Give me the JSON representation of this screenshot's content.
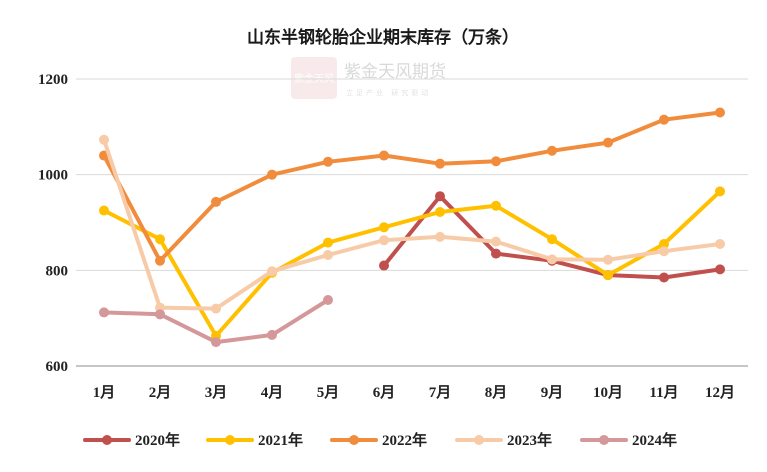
{
  "chart_data": {
    "type": "line",
    "title": "山东半钢轮胎企业期末库存（万条）",
    "categories": [
      "1月",
      "2月",
      "3月",
      "4月",
      "5月",
      "6月",
      "7月",
      "8月",
      "9月",
      "10月",
      "11月",
      "12月"
    ],
    "ylim": [
      600,
      1200
    ],
    "yticks": [
      600,
      800,
      1000,
      1200
    ],
    "grid": "horizontal",
    "legend_position": "bottom",
    "series": [
      {
        "name": "2020年",
        "color": "#c0504d",
        "values": [
          null,
          null,
          null,
          null,
          null,
          810,
          955,
          835,
          820,
          790,
          785,
          802
        ]
      },
      {
        "name": "2021年",
        "color": "#ffc000",
        "values": [
          925,
          865,
          663,
          795,
          858,
          890,
          922,
          935,
          865,
          790,
          855,
          965
        ]
      },
      {
        "name": "2022年",
        "color": "#f08c3c",
        "values": [
          1040,
          820,
          943,
          1000,
          1027,
          1040,
          1023,
          1028,
          1050,
          1067,
          1115,
          1130
        ]
      },
      {
        "name": "2023年",
        "color": "#f8cba8",
        "values": [
          1073,
          722,
          720,
          798,
          832,
          863,
          870,
          860,
          823,
          822,
          840,
          855
        ]
      },
      {
        "name": "2024年",
        "color": "#d4989a",
        "values": [
          712,
          708,
          650,
          665,
          738,
          null,
          null,
          null,
          null,
          null,
          null,
          null
        ]
      }
    ]
  },
  "watermark": {
    "logo_text": "紫金天风",
    "brand": "紫金天风期货",
    "slogan": "立足产业 研究驱动"
  }
}
